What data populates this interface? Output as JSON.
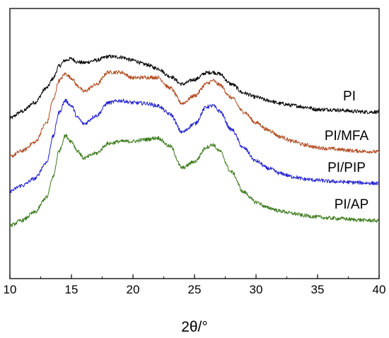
{
  "chart_data": {
    "type": "line",
    "xlabel": "2θ/°",
    "ylabel": "",
    "xlim": [
      10,
      40
    ],
    "ylim": [
      0,
      1
    ],
    "x_ticks": [
      "10",
      "15",
      "20",
      "25",
      "30",
      "35",
      "40"
    ],
    "grid": false,
    "legend": "labels next to curves",
    "series": [
      {
        "name": "PI",
        "color": "#000000",
        "x": [
          10,
          11,
          12,
          13,
          13.5,
          14,
          14.5,
          15,
          15.5,
          16,
          17,
          18,
          19,
          20,
          21,
          22,
          23,
          24,
          25,
          26,
          26.5,
          27,
          28,
          29,
          30,
          31,
          32,
          33,
          34,
          35,
          36,
          37,
          38,
          39,
          40
        ],
        "y": [
          0.594,
          0.619,
          0.652,
          0.706,
          0.741,
          0.787,
          0.808,
          0.814,
          0.802,
          0.799,
          0.808,
          0.822,
          0.82,
          0.808,
          0.793,
          0.778,
          0.749,
          0.72,
          0.737,
          0.762,
          0.764,
          0.758,
          0.72,
          0.687,
          0.672,
          0.659,
          0.648,
          0.641,
          0.635,
          0.626,
          0.626,
          0.623,
          0.619,
          0.617,
          0.617
        ]
      },
      {
        "name": "PI/MFA",
        "color": "#b04a1e",
        "x": [
          10,
          11,
          12,
          13,
          13.5,
          14,
          14.5,
          15,
          15.5,
          16,
          17,
          18,
          19,
          20,
          21,
          22,
          23,
          24,
          25,
          26,
          26.5,
          27,
          28,
          29,
          30,
          31,
          32,
          33,
          34,
          35,
          36,
          37,
          38,
          39,
          40
        ],
        "y": [
          0.452,
          0.473,
          0.504,
          0.577,
          0.66,
          0.733,
          0.758,
          0.743,
          0.714,
          0.693,
          0.718,
          0.764,
          0.764,
          0.743,
          0.745,
          0.745,
          0.706,
          0.649,
          0.677,
          0.722,
          0.733,
          0.718,
          0.67,
          0.617,
          0.577,
          0.55,
          0.525,
          0.508,
          0.495,
          0.485,
          0.481,
          0.477,
          0.473,
          0.471,
          0.469
        ]
      },
      {
        "name": "PI/PIP",
        "color": "#2020d0",
        "x": [
          10,
          11,
          12,
          13,
          13.5,
          14,
          14.5,
          15,
          15.5,
          16,
          17,
          18,
          19,
          20,
          21,
          22,
          23,
          24,
          25,
          26,
          26.5,
          27,
          28,
          29,
          30,
          31,
          32,
          33,
          34,
          35,
          36,
          37,
          38,
          39,
          40
        ],
        "y": [
          0.324,
          0.345,
          0.37,
          0.431,
          0.525,
          0.615,
          0.659,
          0.64,
          0.596,
          0.573,
          0.603,
          0.651,
          0.659,
          0.651,
          0.649,
          0.64,
          0.609,
          0.542,
          0.573,
          0.636,
          0.64,
          0.621,
          0.552,
          0.483,
          0.435,
          0.408,
          0.389,
          0.377,
          0.368,
          0.364,
          0.36,
          0.358,
          0.356,
          0.354,
          0.352
        ]
      },
      {
        "name": "PI/AP",
        "color": "#3a7a1a",
        "x": [
          10,
          11,
          12,
          13,
          13.5,
          14,
          14.5,
          15,
          15.5,
          16,
          17,
          18,
          19,
          20,
          21,
          22,
          23,
          24,
          25,
          26,
          26.5,
          27,
          28,
          29,
          30,
          31,
          32,
          33,
          34,
          35,
          36,
          37,
          38,
          39,
          40
        ],
        "y": [
          0.196,
          0.216,
          0.245,
          0.301,
          0.376,
          0.473,
          0.529,
          0.508,
          0.473,
          0.446,
          0.464,
          0.5,
          0.508,
          0.508,
          0.515,
          0.521,
          0.49,
          0.41,
          0.433,
          0.487,
          0.496,
          0.473,
          0.395,
          0.32,
          0.283,
          0.262,
          0.25,
          0.241,
          0.233,
          0.228,
          0.224,
          0.222,
          0.218,
          0.216,
          0.214
        ]
      }
    ]
  }
}
